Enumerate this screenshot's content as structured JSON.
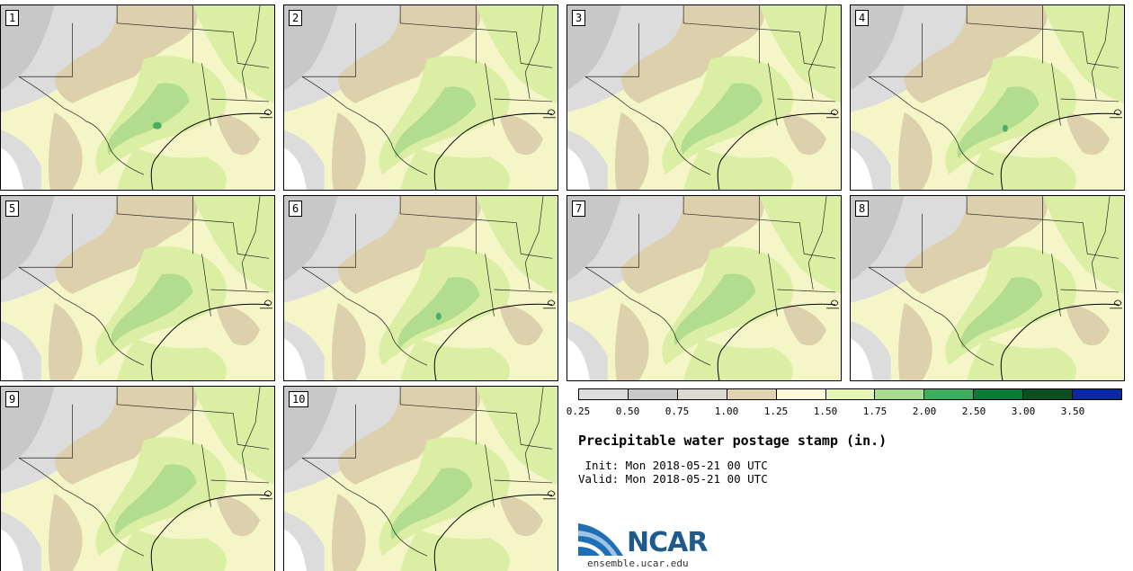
{
  "title": "Precipitable water postage stamp (in.)",
  "init_line": " Init: Mon 2018-05-21 00 UTC",
  "valid_line": "Valid: Mon 2018-05-21 00 UTC",
  "logo_text": "NCAR",
  "website": "ensemble.ucar.edu",
  "members": [
    {
      "label": "1"
    },
    {
      "label": "2"
    },
    {
      "label": "3"
    },
    {
      "label": "4"
    },
    {
      "label": "5"
    },
    {
      "label": "6"
    },
    {
      "label": "7"
    },
    {
      "label": "8"
    },
    {
      "label": "9"
    },
    {
      "label": "10"
    }
  ],
  "colorbar": {
    "ticks": [
      "0.25",
      "0.50",
      "0.75",
      "1.00",
      "1.25",
      "1.50",
      "1.75",
      "2.00",
      "2.50",
      "3.00",
      "3.50"
    ],
    "colors": [
      "#dddddd",
      "#c8c8c8",
      "#dedcd0",
      "#e1d2b0",
      "#fafbd6",
      "#e5f5b2",
      "#a8dc8e",
      "#3fae5c",
      "#0a7b36",
      "#0b4f22",
      "#0a28a8"
    ]
  },
  "map_colors": {
    "light_gray": "#dcdcdc",
    "gray": "#c8c8c8",
    "tan": "#ddd0ac",
    "cream": "#f4f6c8",
    "light_green": "#dbefa4",
    "green": "#b2dd8e",
    "dark_green": "#4aaf60",
    "white": "#ffffff"
  }
}
